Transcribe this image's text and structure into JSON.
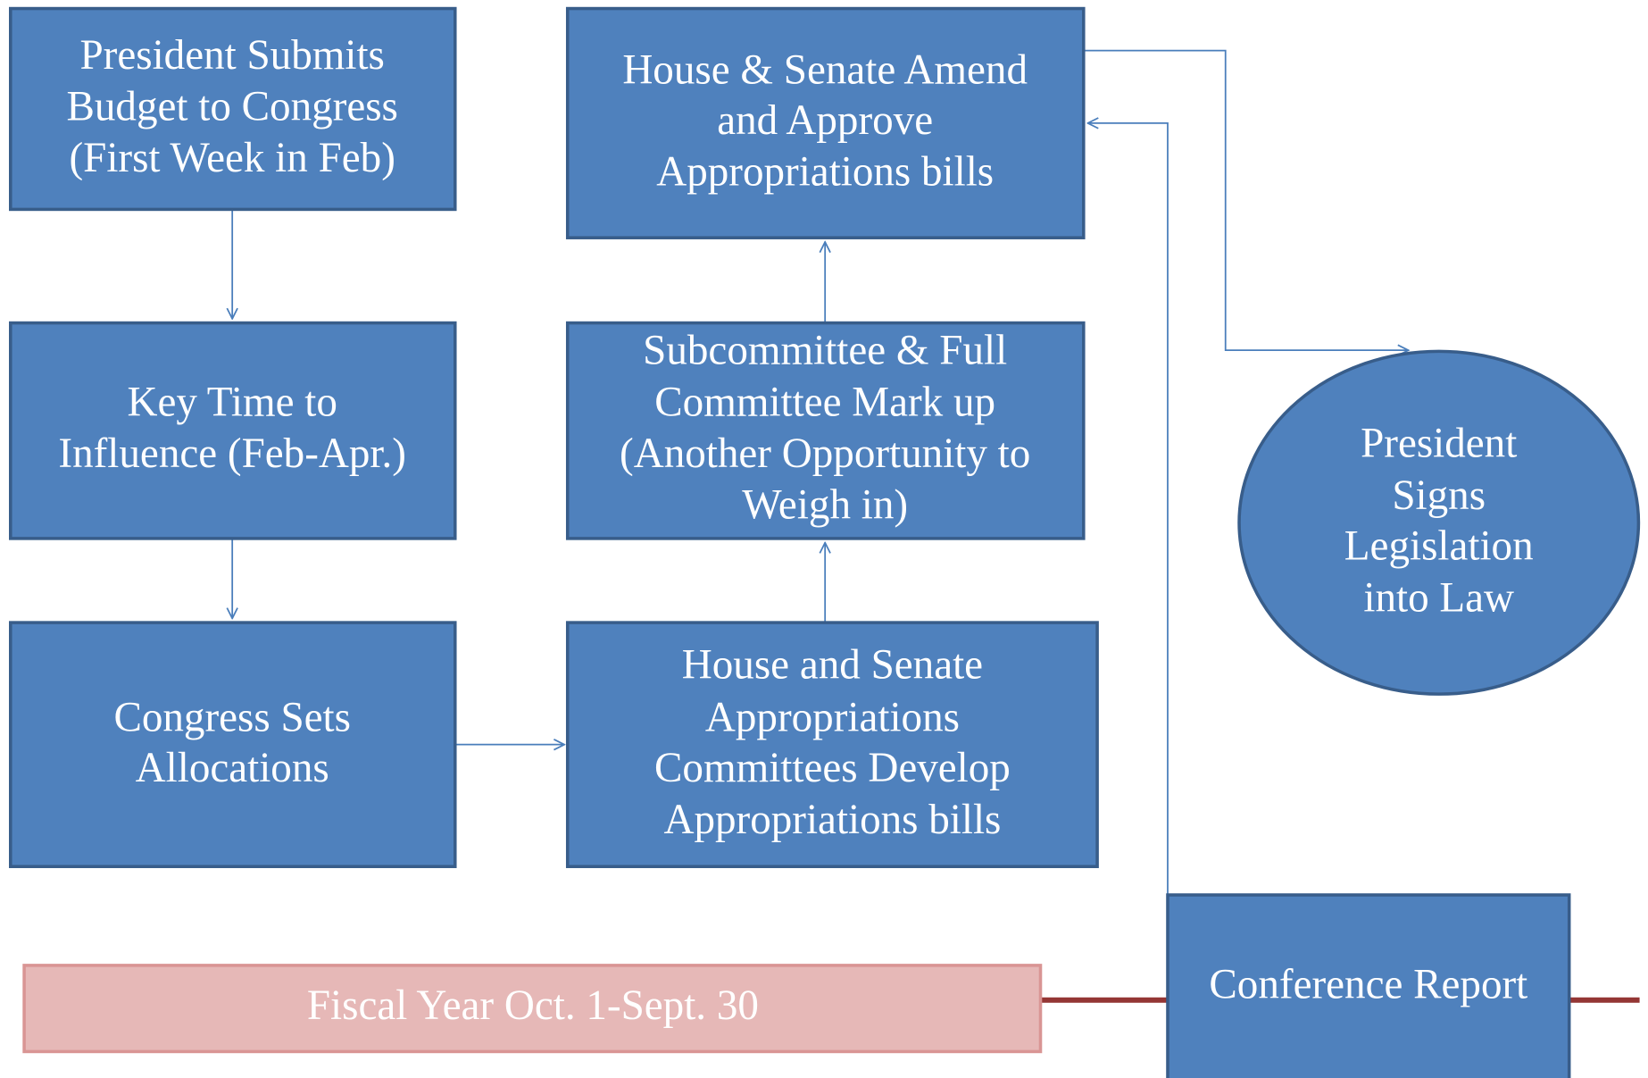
{
  "nodes": [
    {
      "lines": [
        "President Submits",
        "Budget to Congress",
        "(First Week in Feb)"
      ]
    },
    {
      "lines": [
        "Key Time to",
        "Influence (Feb-Apr.)"
      ]
    },
    {
      "lines": [
        "Congress Sets",
        "Allocations"
      ]
    },
    {
      "lines": [
        "House & Senate Amend",
        "and Approve",
        "Appropriations bills"
      ]
    },
    {
      "lines": [
        "Subcommittee & Full",
        "Committee Mark up",
        "(Another Opportunity to",
        "Weigh in)"
      ]
    },
    {
      "lines": [
        "House and Senate",
        "Appropriations",
        "Committees Develop",
        "Appropriations bills"
      ]
    },
    {
      "lines": [
        "President",
        "Signs",
        "Legislation",
        "into Law"
      ]
    },
    {
      "lines": [
        "Conference Report"
      ]
    }
  ],
  "fiscal_year": "Fiscal Year Oct. 1-Sept. 30"
}
